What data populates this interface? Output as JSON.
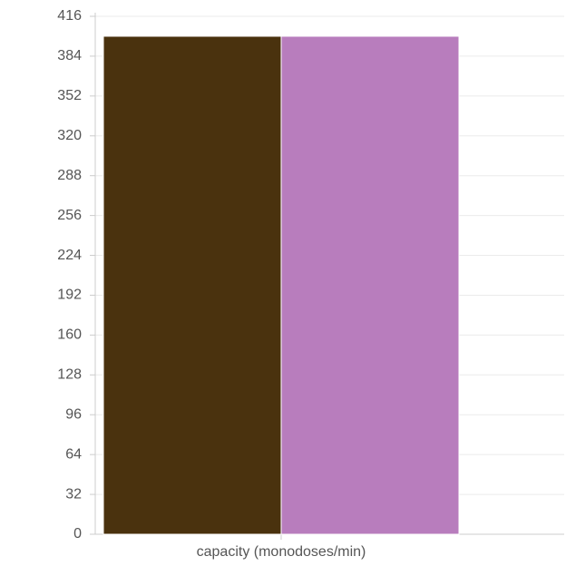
{
  "chart_data": {
    "type": "bar",
    "categories": [
      "capacity (monodoses/min)"
    ],
    "series": [
      {
        "color": "#4a320e",
        "values": [
          400
        ]
      },
      {
        "color": "#b87dbd",
        "values": [
          400
        ]
      }
    ],
    "ylim": [
      0,
      416
    ],
    "yticks": [
      0,
      32,
      64,
      96,
      128,
      160,
      192,
      224,
      256,
      288,
      320,
      352,
      384,
      416
    ],
    "grid": true
  }
}
